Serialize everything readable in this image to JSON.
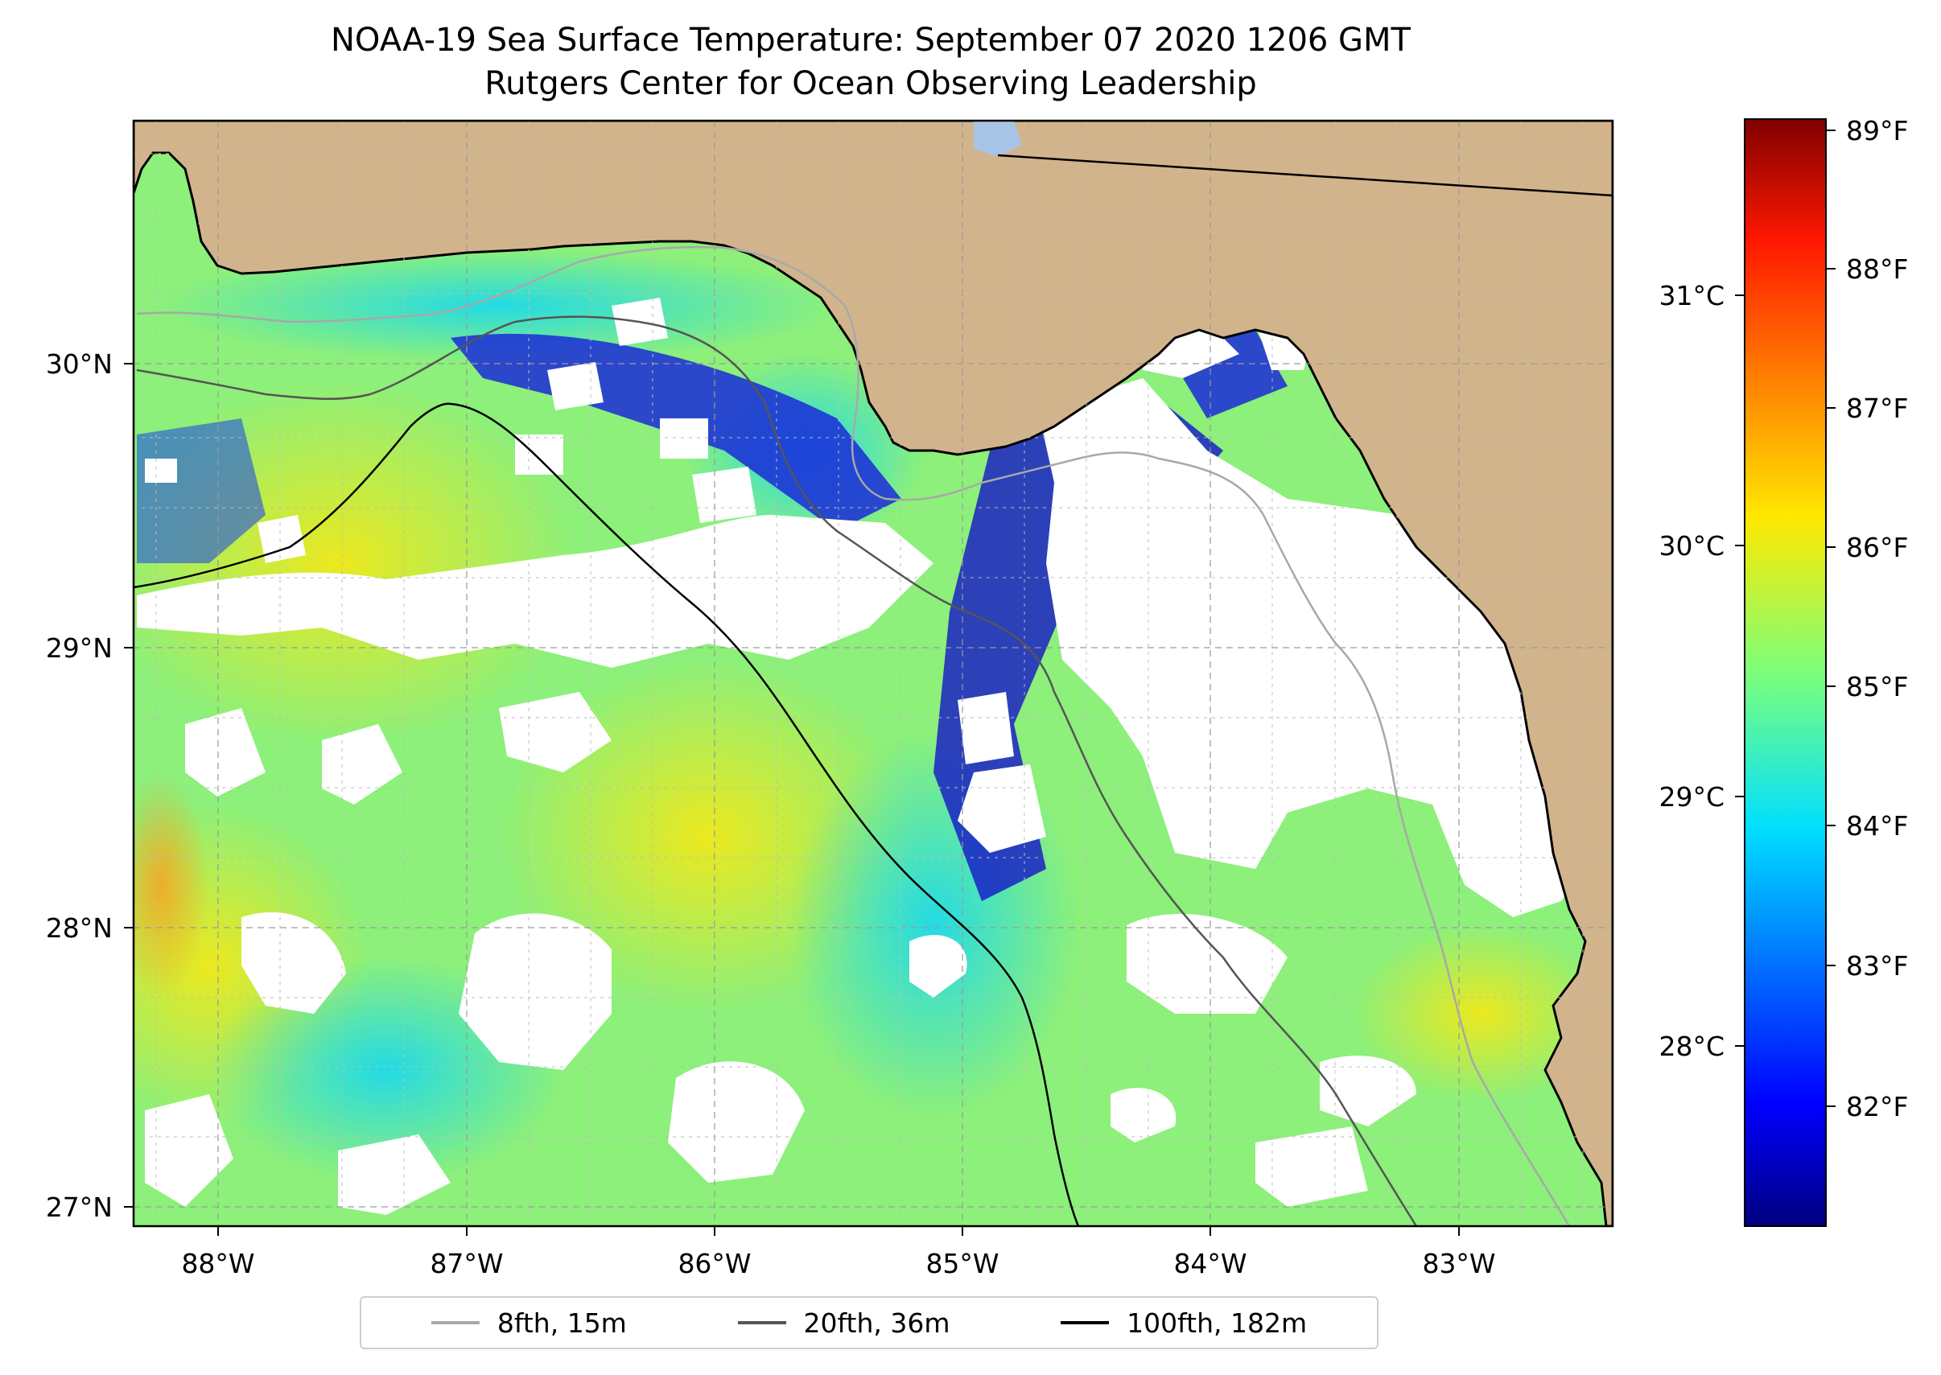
{
  "title": {
    "line1": "NOAA-19 Sea Surface Temperature: September 07 2020 1206 GMT",
    "line2": "Rutgers Center for Ocean Observing Leadership"
  },
  "map": {
    "lon_range": [
      -88.33,
      -82.37
    ],
    "lat_range": [
      26.93,
      30.85
    ],
    "lon_tick_labels": [
      "88°W",
      "87°W",
      "86°W",
      "85°W",
      "84°W",
      "83°W"
    ],
    "lat_tick_labels": [
      "27°N",
      "28°N",
      "29°N",
      "30°N"
    ],
    "land_color": "#d2b48c",
    "missing_data_color": "#ffffff",
    "gridlines": true
  },
  "colorbar": {
    "colormap": "jet",
    "fahrenheit_labels": [
      "82°F",
      "83°F",
      "84°F",
      "85°F",
      "86°F",
      "87°F",
      "88°F",
      "89°F"
    ],
    "celsius_labels": [
      "28°C",
      "29°C",
      "30°C",
      "31°C"
    ],
    "range_f": [
      81.2,
      89.1
    ]
  },
  "legend": {
    "placement": "bottom-center",
    "entries": [
      {
        "label": "8fth, 15m",
        "color": "#a8a8a8"
      },
      {
        "label": "20fth, 36m",
        "color": "#555555"
      },
      {
        "label": "100fth, 182m",
        "color": "#000000"
      }
    ]
  }
}
